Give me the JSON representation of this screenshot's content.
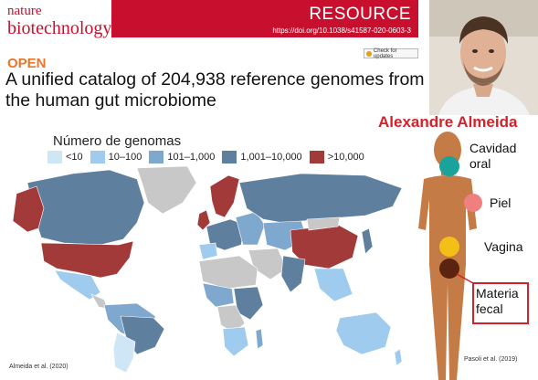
{
  "journal": {
    "name_line1": "nature",
    "name_line2": "biotechnology",
    "section": "RESOURCE",
    "doi": "https://doi.org/10.1038/s41587-020-0603-3",
    "check_updates": "Check for updates"
  },
  "paper": {
    "access": "OPEN",
    "title": "A unified catalog of 204,938 reference genomes from the human gut microbiome"
  },
  "author": {
    "name": "Alexandre Almeida"
  },
  "map": {
    "legend_title": "Número de genomas",
    "legend": [
      {
        "label": "<10",
        "color": "#cfe6f7"
      },
      {
        "label": "10–100",
        "color": "#9fcbee"
      },
      {
        "label": "101–1,000",
        "color": "#7fa8cf"
      },
      {
        "label": "1,001–10,000",
        "color": "#5f7f9f"
      },
      {
        "label": ">10,000",
        "color": "#a33a3a"
      }
    ],
    "no_data_color": "#c8c8c8"
  },
  "body_sites": {
    "oral": {
      "label": "Cavidad oral",
      "color": "#1aa39a"
    },
    "skin": {
      "label": "Piel",
      "color": "#f08080"
    },
    "vagina": {
      "label": "Vagina",
      "color": "#f3c018"
    },
    "fecal": {
      "label": "Materia fecal",
      "color": "#5a2410"
    },
    "skin_tone": "#c47b45"
  },
  "citations": {
    "left": "Almeida et al. (2020)",
    "right": "Pasoli et al. (2019)"
  }
}
